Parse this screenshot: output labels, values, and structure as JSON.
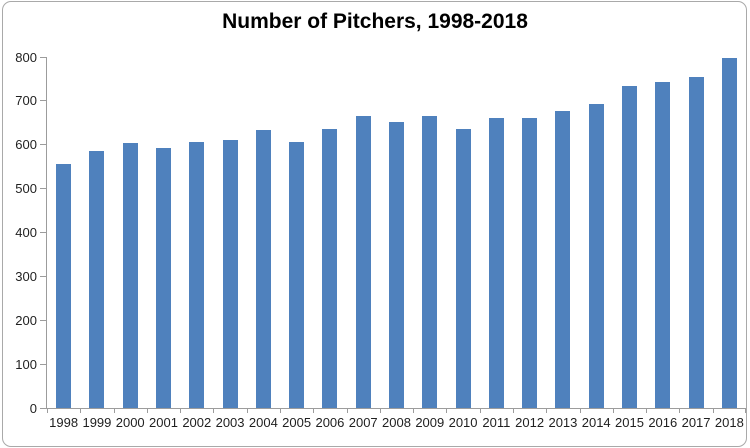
{
  "chart_data": {
    "type": "bar",
    "title": "Number of Pitchers, 1998-2018",
    "categories": [
      "1998",
      "1999",
      "2000",
      "2001",
      "2002",
      "2003",
      "2004",
      "2005",
      "2006",
      "2007",
      "2008",
      "2009",
      "2010",
      "2011",
      "2012",
      "2013",
      "2014",
      "2015",
      "2016",
      "2017",
      "2018"
    ],
    "values": [
      557,
      585,
      605,
      592,
      607,
      612,
      633,
      606,
      635,
      665,
      651,
      665,
      635,
      662,
      662,
      678,
      692,
      735,
      742,
      755,
      798
    ],
    "xlabel": "",
    "ylabel": "",
    "ylim": [
      0,
      800
    ],
    "yticks": [
      0,
      100,
      200,
      300,
      400,
      500,
      600,
      700,
      800
    ],
    "grid": false,
    "legend": "none",
    "colors": {
      "bar": "#4f81bd",
      "axis": "#9c9c9c",
      "tick_label": "#1f1f1f",
      "title": "#000000",
      "background": "#ffffff",
      "frame_border": "#a9a9a9"
    }
  }
}
